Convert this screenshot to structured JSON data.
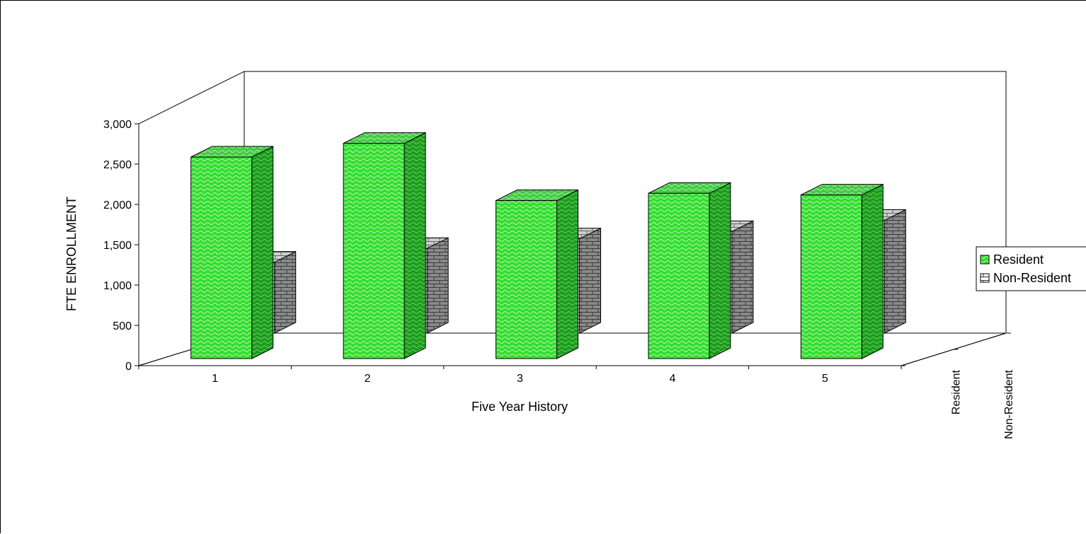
{
  "chart_data": {
    "type": "bar",
    "variant": "3d-clustered",
    "categories": [
      "1",
      "2",
      "3",
      "4",
      "5"
    ],
    "series": [
      {
        "name": "Resident",
        "values": [
          2500,
          2670,
          1960,
          2050,
          2030
        ],
        "color": "#33dd33",
        "side_color": "#1e9a1e",
        "top_color": "#44cc44",
        "pattern": "wave"
      },
      {
        "name": "Non-Resident",
        "values": [
          880,
          1050,
          1170,
          1260,
          1400
        ],
        "color": "#ffffff",
        "side_color": "#888888",
        "top_color": "#c8c8c8",
        "pattern": "brick"
      }
    ],
    "xlabel": "Five Year History",
    "ylabel": "FTE ENROLLMENT",
    "ylim": [
      0,
      3000
    ],
    "yticks": [
      0,
      500,
      1000,
      1500,
      2000,
      2500,
      3000
    ],
    "ytick_labels": [
      "0",
      "500",
      "1,000",
      "1,500",
      "2,000",
      "2,500",
      "3,000"
    ],
    "depth_labels": [
      "Resident",
      "Non-Resident"
    ],
    "legend": {
      "position": "right",
      "entries": [
        "Resident",
        "Non-Resident"
      ]
    },
    "grid": false
  }
}
